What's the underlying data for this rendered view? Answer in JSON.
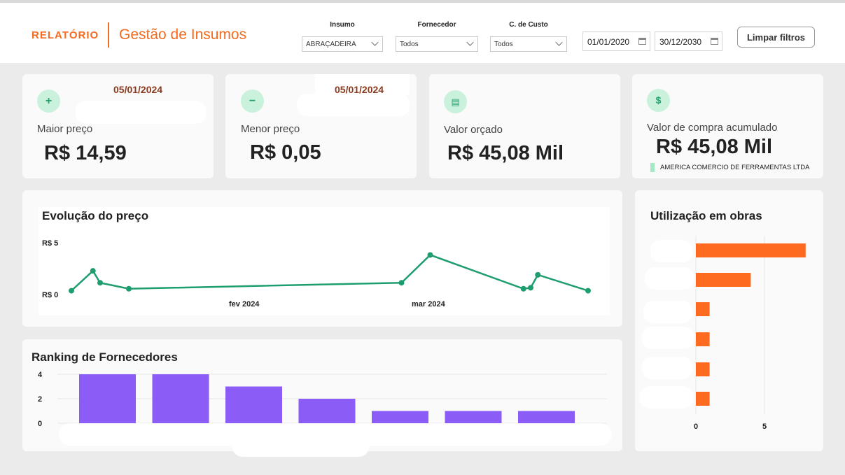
{
  "header": {
    "brand": "RELATÓRIO",
    "title": "Gestão de Insumos",
    "filters": {
      "insumo": {
        "label": "Insumo",
        "value": "ABRAÇADEIRA"
      },
      "fornecedor": {
        "label": "Fornecedor",
        "value": "Todos"
      },
      "custo": {
        "label": "C. de Custo",
        "value": "Todos"
      }
    },
    "date_start": "01/01/2020",
    "date_end": "30/12/2030",
    "clear_label": "Limpar filtros"
  },
  "kpis": {
    "max": {
      "icon": "plus-icon",
      "date": "05/01/2024",
      "label": "Maior preço",
      "value": "R$ 14,59"
    },
    "min": {
      "icon": "minus-icon",
      "date": "05/01/2024",
      "label": "Menor preço",
      "value": "R$ 0,05"
    },
    "budget": {
      "icon": "receipt-icon",
      "label": "Valor orçado",
      "value": "R$ 45,08 Mil"
    },
    "purchase": {
      "icon": "dollar-coin-icon",
      "label": "Valor de compra acumulado",
      "value": "R$ 45,08 Mil",
      "legend": "AMERICA COMERCIO DE FERRAMENTAS LTDA"
    }
  },
  "colors": {
    "accent": "#f26b21",
    "line": "#1e9e6e",
    "bars": "#8b5cf6",
    "hbars": "#ff6a21"
  },
  "chart_data": [
    {
      "type": "line",
      "title": "Evolução do preço",
      "x": [
        "2024-01-05",
        "2024-01-08",
        "2024-01-09",
        "2024-01-13",
        "2024-02-20",
        "2024-02-24",
        "2024-03-08",
        "2024-03-09",
        "2024-03-10",
        "2024-03-17"
      ],
      "values": [
        0.1,
        2.1,
        0.9,
        0.3,
        0.9,
        3.7,
        0.3,
        0.4,
        1.7,
        0.1
      ],
      "ylim": [
        0,
        5
      ],
      "ytick_labels": [
        "R$ 0",
        "R$ 5"
      ],
      "xtick_labels": [
        "fev 2024",
        "mar 2024"
      ]
    },
    {
      "type": "bar",
      "title": "Ranking de Fornecedores",
      "values": [
        4,
        4,
        3,
        2,
        1,
        1,
        1
      ],
      "ylim": [
        0,
        4
      ],
      "yticks": [
        "0",
        "2",
        "4"
      ]
    },
    {
      "type": "bar",
      "orientation": "horizontal",
      "title": "Utilização em obras",
      "values": [
        8,
        4,
        1,
        1,
        1,
        1
      ],
      "xlim": [
        0,
        8.5
      ],
      "xticks": [
        "0",
        "5"
      ]
    }
  ]
}
